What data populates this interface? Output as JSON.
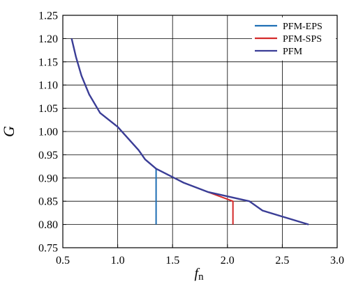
{
  "chart_data": {
    "type": "line",
    "xlabel": "f",
    "xlabel_sub": "n",
    "ylabel": "G",
    "xlim": [
      0.5,
      3.0
    ],
    "ylim": [
      0.75,
      1.25
    ],
    "xticks": [
      "0.5",
      "1.0",
      "1.5",
      "2.0",
      "2.5",
      "3.0"
    ],
    "yticks": [
      "0.75",
      "0.80",
      "0.85",
      "0.90",
      "0.95",
      "1.00",
      "1.05",
      "1.10",
      "1.15",
      "1.20",
      "1.25"
    ],
    "grid": true,
    "legend_position": "top-right",
    "series": [
      {
        "name": "PFM-EPS",
        "color": "#1f6fb5",
        "x": [
          1.35,
          1.35
        ],
        "y": [
          0.92,
          0.8
        ]
      },
      {
        "name": "PFM-SPS",
        "color": "#d42a2a",
        "x": [
          1.82,
          2.05,
          2.05
        ],
        "y": [
          0.87,
          0.85,
          0.8
        ]
      },
      {
        "name": "PFM",
        "color": "#3a3d96",
        "x": [
          0.58,
          0.62,
          0.67,
          0.74,
          0.84,
          1.0,
          1.19,
          1.25,
          1.35,
          1.6,
          1.82,
          2.2,
          2.32,
          2.74
        ],
        "y": [
          1.2,
          1.16,
          1.12,
          1.08,
          1.04,
          1.01,
          0.96,
          0.94,
          0.92,
          0.89,
          0.87,
          0.85,
          0.83,
          0.8
        ]
      }
    ]
  }
}
